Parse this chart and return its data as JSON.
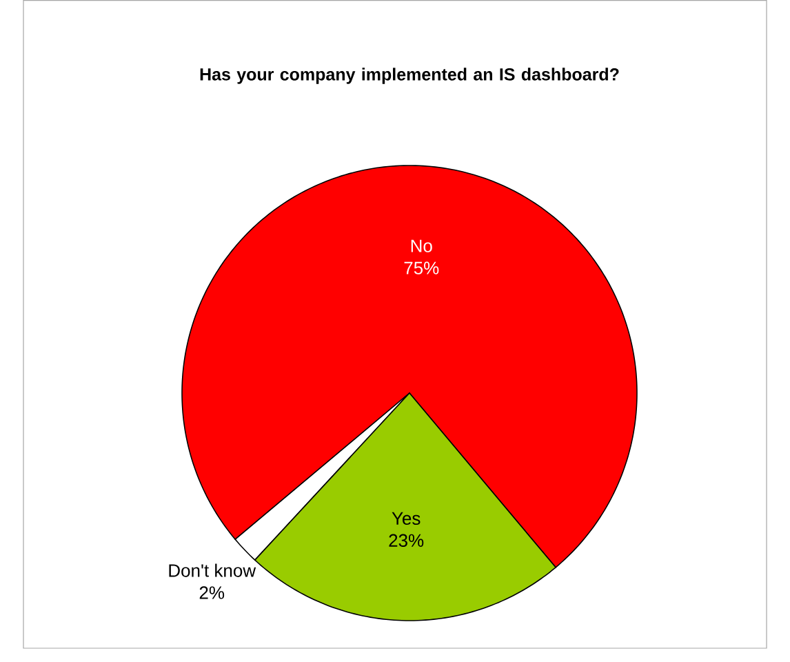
{
  "chart_data": {
    "type": "pie",
    "title": "Has your company implemented an IS dashboard?",
    "categories": [
      "No",
      "Don't know",
      "Yes"
    ],
    "values": [
      75,
      2,
      23
    ],
    "colors": [
      "#ff0000",
      "#ffffff",
      "#99cc00"
    ],
    "value_labels": [
      "75%",
      "2%",
      "23%"
    ]
  }
}
